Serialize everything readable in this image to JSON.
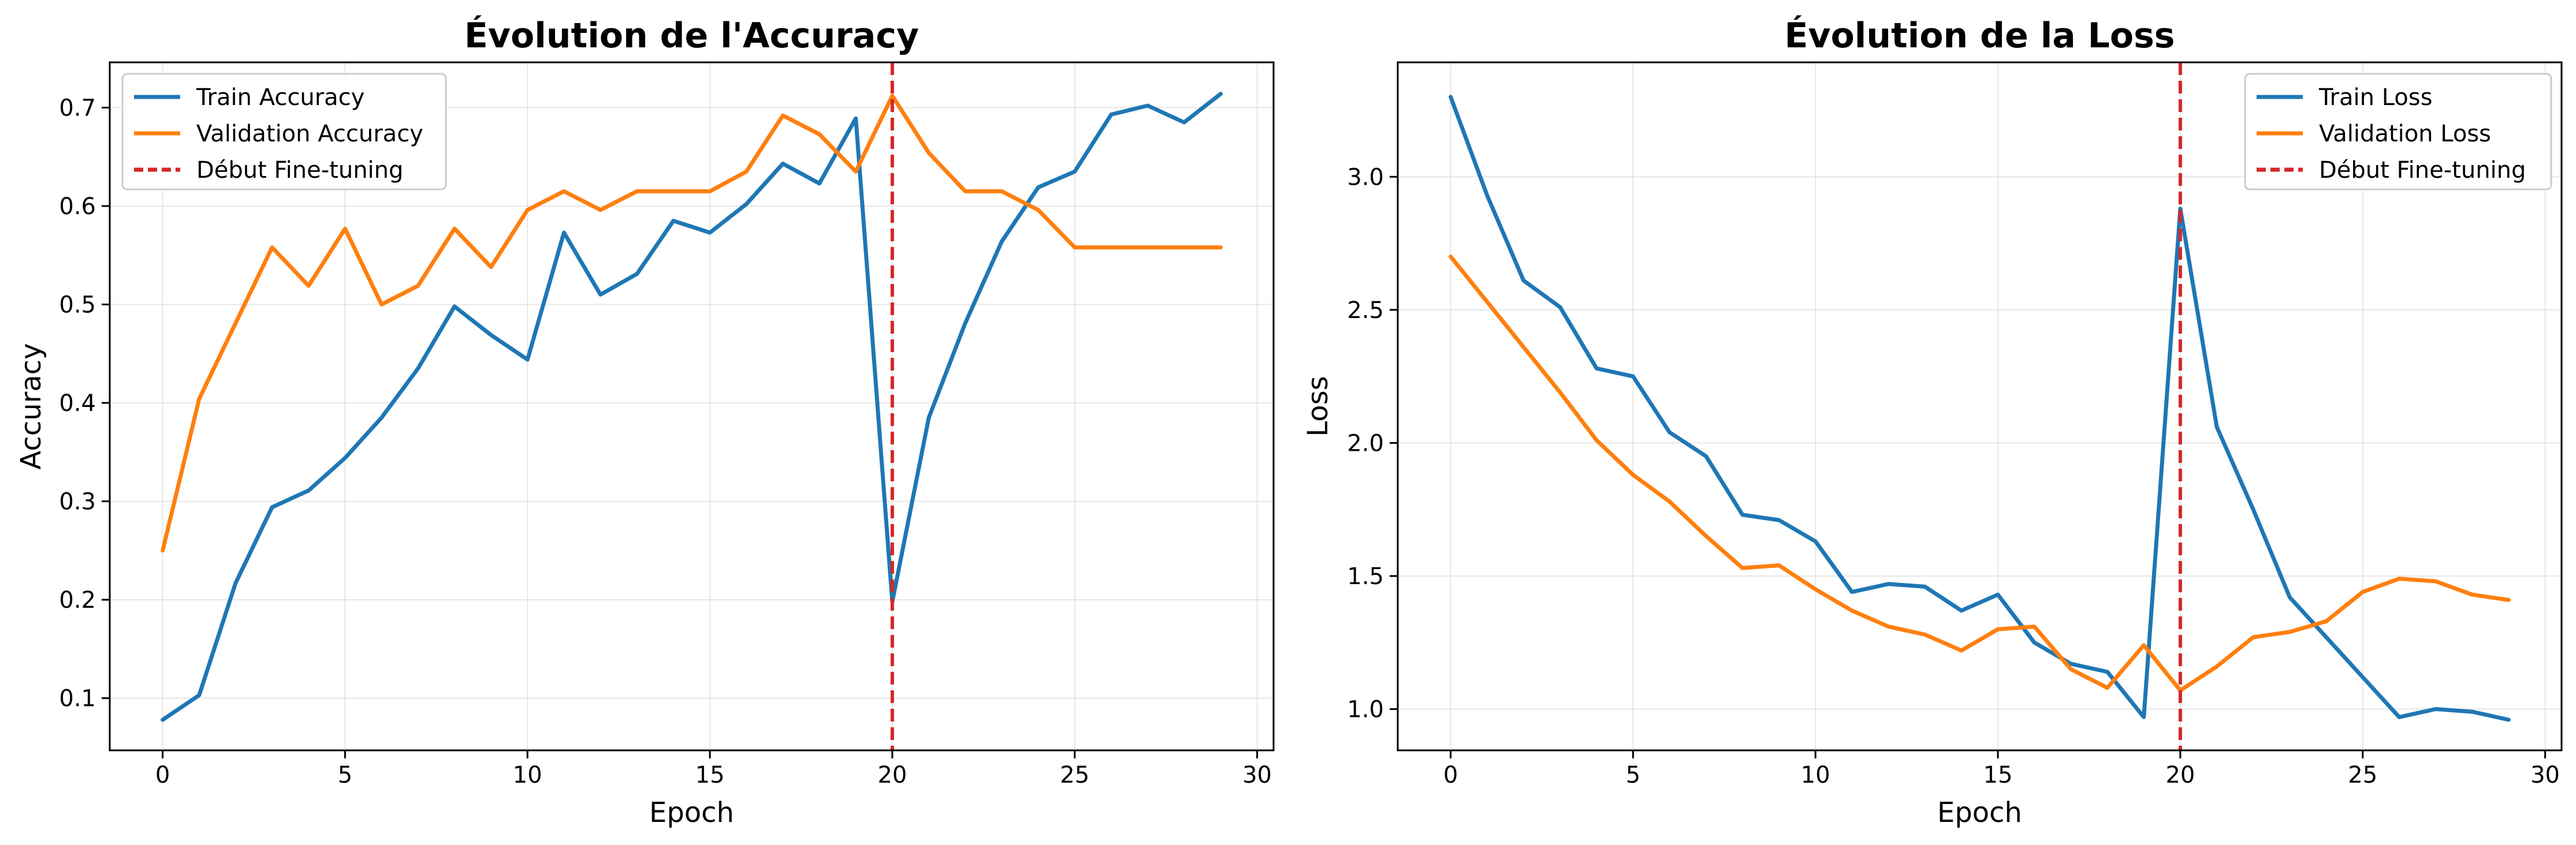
{
  "chart_data": [
    {
      "type": "line",
      "title": "Évolution de l'Accuracy",
      "xlabel": "Epoch",
      "ylabel": "Accuracy",
      "xlim": [
        -1.45,
        30.45
      ],
      "ylim": [
        0.047,
        0.746
      ],
      "xticks": [
        0,
        5,
        10,
        15,
        20,
        25,
        30
      ],
      "yticks": [
        0.1,
        0.2,
        0.3,
        0.4,
        0.5,
        0.6,
        0.7
      ],
      "xtick_labels": [
        "0",
        "5",
        "10",
        "15",
        "20",
        "25",
        "30"
      ],
      "ytick_labels": [
        "0.1",
        "0.2",
        "0.3",
        "0.4",
        "0.5",
        "0.6",
        "0.7"
      ],
      "grid": true,
      "legend_position": "top-left",
      "x": [
        0,
        1,
        2,
        3,
        4,
        5,
        6,
        7,
        8,
        9,
        10,
        11,
        12,
        13,
        14,
        15,
        16,
        17,
        18,
        19,
        20,
        21,
        22,
        23,
        24,
        25,
        26,
        27,
        28,
        29
      ],
      "series": [
        {
          "name": "Train Accuracy",
          "color": "#1f77b4",
          "values": [
            0.078,
            0.103,
            0.217,
            0.294,
            0.311,
            0.344,
            0.385,
            0.435,
            0.498,
            0.469,
            0.444,
            0.573,
            0.51,
            0.531,
            0.585,
            0.573,
            0.602,
            0.643,
            0.623,
            0.689,
            0.198,
            0.385,
            0.481,
            0.564,
            0.619,
            0.635,
            0.693,
            0.702,
            0.685,
            0.714
          ]
        },
        {
          "name": "Validation Accuracy",
          "color": "#ff7f0e",
          "values": [
            0.25,
            0.404,
            0.481,
            0.558,
            0.519,
            0.577,
            0.5,
            0.519,
            0.577,
            0.538,
            0.596,
            0.615,
            0.596,
            0.615,
            0.615,
            0.615,
            0.635,
            0.692,
            0.673,
            0.635,
            0.712,
            0.654,
            0.615,
            0.615,
            0.596,
            0.558,
            0.558,
            0.558,
            0.558,
            0.558
          ]
        }
      ],
      "vline": {
        "x": 20,
        "name": "Début Fine-tuning",
        "color": "#d62728"
      }
    },
    {
      "type": "line",
      "title": "Évolution de la Loss",
      "xlabel": "Epoch",
      "ylabel": "Loss",
      "xlim": [
        -1.45,
        30.45
      ],
      "ylim": [
        0.845,
        3.43
      ],
      "xticks": [
        0,
        5,
        10,
        15,
        20,
        25,
        30
      ],
      "yticks": [
        1.0,
        1.5,
        2.0,
        2.5,
        3.0
      ],
      "xtick_labels": [
        "0",
        "5",
        "10",
        "15",
        "20",
        "25",
        "30"
      ],
      "ytick_labels": [
        "1.0",
        "1.5",
        "2.0",
        "2.5",
        "3.0"
      ],
      "grid": true,
      "legend_position": "top-right",
      "x": [
        0,
        1,
        2,
        3,
        4,
        5,
        6,
        7,
        8,
        9,
        10,
        11,
        12,
        13,
        14,
        15,
        16,
        17,
        18,
        19,
        20,
        21,
        22,
        23,
        24,
        25,
        26,
        27,
        28,
        29
      ],
      "series": [
        {
          "name": "Train Loss",
          "color": "#1f77b4",
          "values": [
            3.3,
            2.93,
            2.61,
            2.51,
            2.28,
            2.25,
            2.04,
            1.95,
            1.73,
            1.71,
            1.63,
            1.44,
            1.47,
            1.46,
            1.37,
            1.43,
            1.25,
            1.17,
            1.14,
            0.97,
            2.88,
            2.06,
            1.75,
            1.42,
            1.27,
            1.12,
            0.97,
            1.0,
            0.99,
            0.96
          ]
        },
        {
          "name": "Validation Loss",
          "color": "#ff7f0e",
          "values": [
            2.7,
            2.53,
            2.36,
            2.19,
            2.01,
            1.88,
            1.78,
            1.65,
            1.53,
            1.54,
            1.45,
            1.37,
            1.31,
            1.28,
            1.22,
            1.3,
            1.31,
            1.15,
            1.08,
            1.24,
            1.07,
            1.16,
            1.27,
            1.29,
            1.33,
            1.44,
            1.49,
            1.48,
            1.43,
            1.41
          ]
        }
      ],
      "vline": {
        "x": 20,
        "name": "Début Fine-tuning",
        "color": "#d62728"
      }
    }
  ]
}
